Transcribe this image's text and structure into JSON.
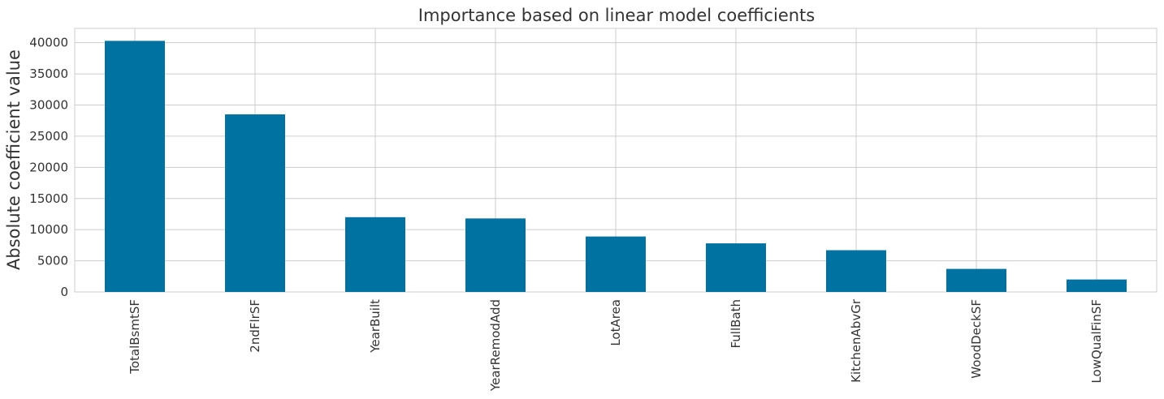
{
  "chart_data": {
    "type": "bar",
    "title": "Importance based on linear model coefficients",
    "xlabel": "",
    "ylabel": "Absolute coefficient value",
    "categories": [
      "TotalBsmtSF",
      "2ndFlrSF",
      "YearBuilt",
      "YearRemodAdd",
      "LotArea",
      "FullBath",
      "KitchenAbvGr",
      "WoodDeckSF",
      "LowQualFinSF"
    ],
    "values": [
      40300,
      28500,
      12000,
      11800,
      8900,
      7800,
      6700,
      3700,
      2000
    ],
    "yticks": [
      0,
      5000,
      10000,
      15000,
      20000,
      25000,
      30000,
      35000,
      40000
    ],
    "ylim": [
      0,
      42300
    ],
    "grid": true,
    "legend": "none",
    "colors": {
      "bar": "#0072a2",
      "grid": "#cccccc",
      "text": "#333333"
    }
  }
}
